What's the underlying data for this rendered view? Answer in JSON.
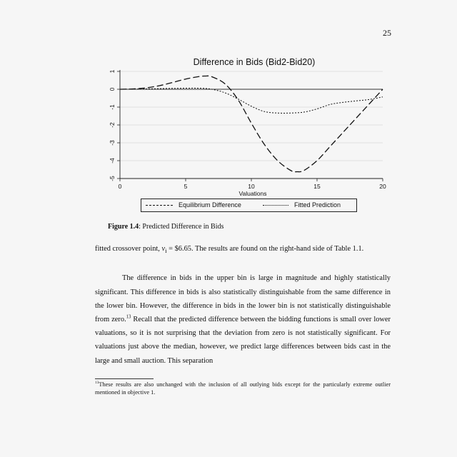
{
  "page_number": "25",
  "chart_data": {
    "type": "line",
    "title": "Difference in Bids (Bid2-Bid20)",
    "xlabel": "Valuations",
    "ylabel": "",
    "xlim": [
      0,
      20
    ],
    "ylim": [
      -5,
      1
    ],
    "x_ticks": [
      0,
      5,
      10,
      15,
      20
    ],
    "y_ticks": [
      1,
      0,
      -1,
      -2,
      -3,
      -4,
      -5
    ],
    "grid": true,
    "legend_position": "bottom",
    "series": [
      {
        "name": "Equilibrium Difference",
        "style": "dashed",
        "x": [
          0,
          1,
          2,
          3,
          4,
          5,
          6,
          6.5,
          7,
          8,
          9,
          10,
          11,
          12,
          13,
          13.5,
          14,
          15,
          16,
          17,
          18,
          19,
          20
        ],
        "y": [
          0,
          0.02,
          0.08,
          0.2,
          0.38,
          0.57,
          0.71,
          0.74,
          0.7,
          0.3,
          -0.6,
          -1.9,
          -3.1,
          -4.0,
          -4.55,
          -4.62,
          -4.55,
          -4.0,
          -3.2,
          -2.4,
          -1.6,
          -0.8,
          0.0
        ]
      },
      {
        "name": "Fitted Prediction",
        "style": "dotted",
        "x": [
          0,
          2,
          4,
          6,
          7,
          8,
          9,
          10,
          11,
          12,
          13,
          14,
          15,
          16,
          17,
          18,
          19,
          20
        ],
        "y": [
          0,
          0.02,
          0.05,
          0.06,
          0.0,
          -0.2,
          -0.55,
          -0.95,
          -1.25,
          -1.33,
          -1.33,
          -1.28,
          -1.1,
          -0.85,
          -0.73,
          -0.65,
          -0.57,
          -0.43
        ]
      }
    ]
  },
  "figure": {
    "label": "Figure 1.4",
    "caption": ": Predicted Difference in Bids"
  },
  "body": {
    "p1_a": "fitted crossover point, ",
    "p1_var": "v",
    "p1_sub": "i",
    "p1_b": " = $6.65. The results are found on the right-hand side of Table 1.1.",
    "p2_a": "The difference in bids in the upper bin is large in magnitude and highly statistically significant. This difference in bids is also statistically distinguishable from the same difference in the lower bin. However, the difference in bids in the lower bin is not statistically distinguishable from zero.",
    "p2_fn": "13",
    "p2_b": " Recall that the predicted difference between the bidding functions is small over lower valuations, so it is not surprising that the deviation from zero is not statistically significant. For valuations just above the median, however, we predict large differences between bids cast in the large and small auction. This separation"
  },
  "footnote": {
    "mark": "13",
    "text": "These results are also unchanged with the inclusion of all outlying bids except for the particularly extreme outlier mentioned in objective 1."
  }
}
